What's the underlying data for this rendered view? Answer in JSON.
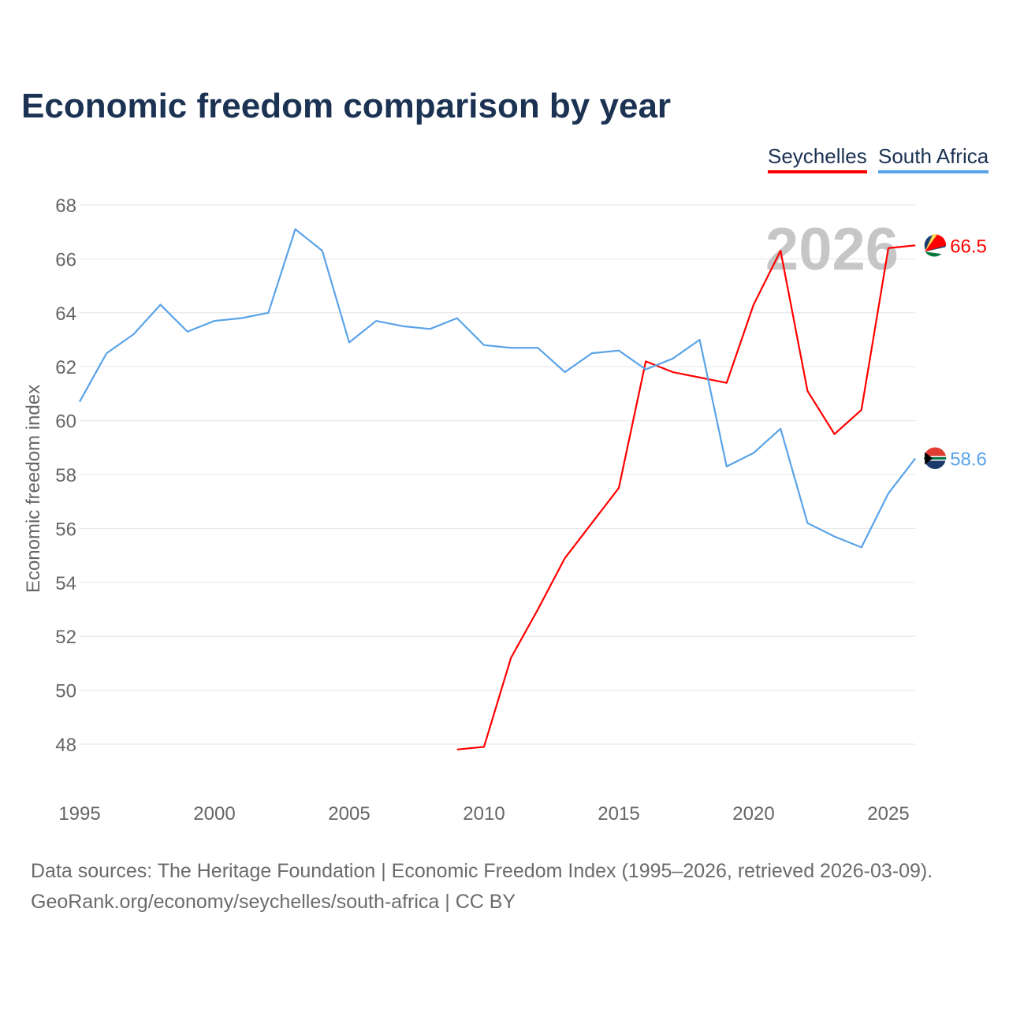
{
  "chart_data": {
    "type": "line",
    "title": "Economic freedom comparison by year",
    "xlabel": "",
    "ylabel": "Economic freedom index",
    "xlim": [
      1995,
      2026
    ],
    "ylim": [
      47,
      68
    ],
    "yticks": [
      48,
      50,
      52,
      54,
      56,
      58,
      60,
      62,
      64,
      66,
      68
    ],
    "xticks": [
      1995,
      2000,
      2005,
      2010,
      2015,
      2020,
      2025
    ],
    "grid": true,
    "legend_position": "top-right",
    "watermark_year": "2026",
    "series": [
      {
        "name": "Seychelles",
        "color": "#ff0000",
        "end_label": "66.5",
        "x": [
          2009,
          2010,
          2011,
          2012,
          2013,
          2014,
          2015,
          2016,
          2017,
          2018,
          2019,
          2020,
          2021,
          2022,
          2023,
          2024,
          2025,
          2026
        ],
        "values": [
          47.8,
          47.9,
          51.2,
          53.0,
          54.9,
          56.2,
          57.5,
          62.2,
          61.8,
          61.6,
          61.4,
          64.3,
          66.3,
          61.1,
          59.5,
          60.4,
          66.4,
          66.5
        ]
      },
      {
        "name": "South Africa",
        "color": "#5aa3e8",
        "end_label": "58.6",
        "x": [
          1995,
          1996,
          1997,
          1998,
          1999,
          2000,
          2001,
          2002,
          2003,
          2004,
          2005,
          2006,
          2007,
          2008,
          2009,
          2010,
          2011,
          2012,
          2013,
          2014,
          2015,
          2016,
          2017,
          2018,
          2019,
          2020,
          2021,
          2022,
          2023,
          2024,
          2025,
          2026
        ],
        "values": [
          60.7,
          62.5,
          63.2,
          64.3,
          63.3,
          63.7,
          63.8,
          64.0,
          67.1,
          66.3,
          62.9,
          63.7,
          63.5,
          63.4,
          63.8,
          62.8,
          62.7,
          62.7,
          61.8,
          62.5,
          62.6,
          61.9,
          62.3,
          63.0,
          58.3,
          58.8,
          59.7,
          56.2,
          55.7,
          55.3,
          57.3,
          58.6
        ]
      }
    ]
  },
  "footer": {
    "line1": "Data sources: The Heritage Foundation | Economic Freedom Index (1995–2026, retrieved 2026-03-09).",
    "line2": "GeoRank.org/economy/seychelles/south-africa | CC BY"
  }
}
